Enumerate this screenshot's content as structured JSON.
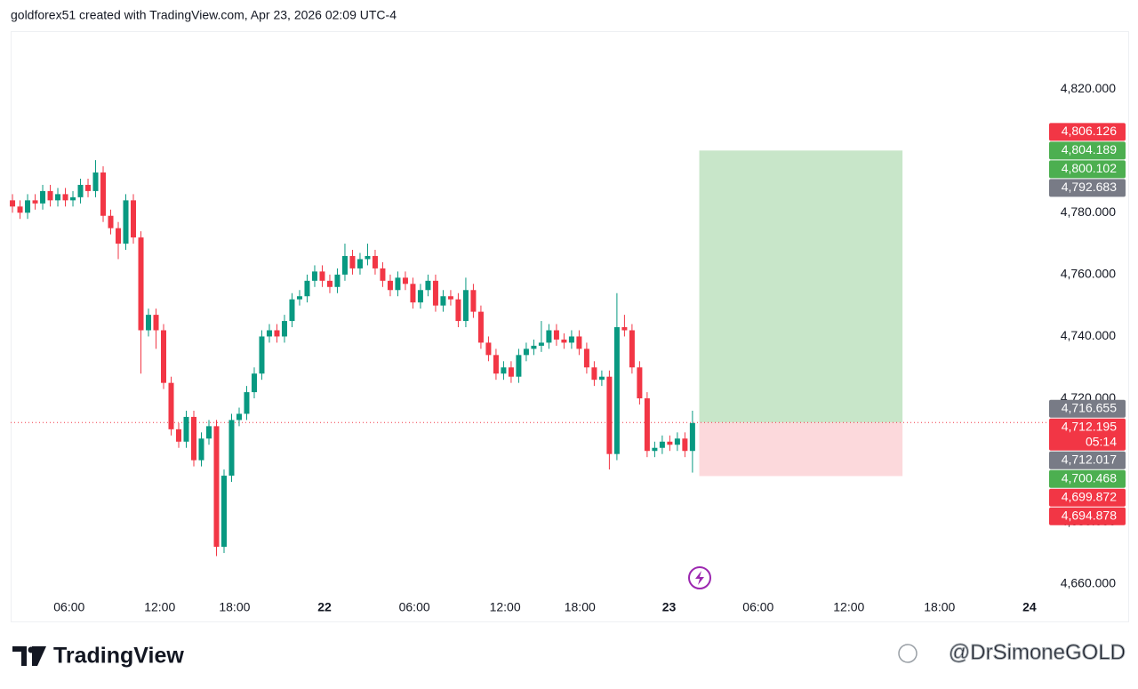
{
  "header": {
    "text": "goldforex51 created with TradingView.com, Apr 23, 2026 02:09 UTC-4"
  },
  "footer": {
    "brand": "TradingView",
    "watermark": "@DrSimoneGOLD"
  },
  "chart_data": {
    "type": "candlestick",
    "up_color": "#089981",
    "down_color": "#f23645",
    "open": [
      4784,
      4782,
      4780,
      4784,
      4783,
      4787,
      4784,
      4786,
      4784,
      4785,
      4789,
      4787,
      4793,
      4779,
      4775,
      4770,
      4784,
      4772,
      4742,
      4747,
      4742,
      4725,
      4710,
      4706,
      4714,
      4700,
      4707,
      4711,
      4672,
      4695,
      4713,
      4715,
      4722,
      4728,
      4740,
      4742,
      4740,
      4745,
      4752,
      4753,
      4758,
      4761,
      4758,
      4756,
      4760,
      4766,
      4762,
      4765,
      4766,
      4762,
      4758,
      4755,
      4759,
      4757,
      4751,
      4755,
      4758,
      4750,
      4753,
      4752,
      4745,
      4755,
      4748,
      4738,
      4734,
      4728,
      4730,
      4727,
      4734,
      4736,
      4737,
      4738,
      4742,
      4739,
      4738,
      4740,
      4736,
      4730,
      4726,
      4727,
      4702,
      4743,
      4742,
      4730,
      4720,
      4703,
      4704,
      4706,
      4705,
      4707,
      4703
    ],
    "high": [
      4786,
      4784,
      4786,
      4786,
      4789,
      4789,
      4788,
      4788,
      4787,
      4791,
      4791,
      4797,
      4795,
      4781,
      4777,
      4786,
      4786,
      4774,
      4749,
      4749,
      4744,
      4727,
      4712,
      4716,
      4716,
      4709,
      4713,
      4713,
      4697,
      4715,
      4717,
      4724,
      4730,
      4742,
      4744,
      4744,
      4747,
      4754,
      4755,
      4760,
      4763,
      4763,
      4760,
      4762,
      4770,
      4768,
      4767,
      4770,
      4768,
      4764,
      4760,
      4761,
      4761,
      4759,
      4757,
      4760,
      4760,
      4755,
      4755,
      4754,
      4759,
      4757,
      4750,
      4740,
      4736,
      4732,
      4732,
      4736,
      4738,
      4739,
      4745,
      4744,
      4744,
      4741,
      4742,
      4742,
      4738,
      4732,
      4729,
      4729,
      4754,
      4747,
      4744,
      4732,
      4722,
      4706,
      4708,
      4708,
      4709,
      4709,
      4716
    ],
    "low": [
      4780,
      4778,
      4778,
      4781,
      4781,
      4782,
      4782,
      4782,
      4782,
      4783,
      4785,
      4785,
      4777,
      4773,
      4765,
      4768,
      4770,
      4728,
      4740,
      4736,
      4723,
      4708,
      4704,
      4704,
      4698,
      4698,
      4705,
      4669,
      4670,
      4693,
      4711,
      4713,
      4720,
      4726,
      4738,
      4738,
      4738,
      4743,
      4750,
      4751,
      4756,
      4756,
      4754,
      4754,
      4758,
      4760,
      4760,
      4763,
      4760,
      4756,
      4753,
      4753,
      4755,
      4749,
      4749,
      4753,
      4748,
      4748,
      4750,
      4743,
      4743,
      4746,
      4736,
      4732,
      4726,
      4726,
      4725,
      4725,
      4732,
      4734,
      4735,
      4736,
      4737,
      4736,
      4736,
      4734,
      4728,
      4724,
      4724,
      4697,
      4700,
      4740,
      4728,
      4718,
      4701,
      4701,
      4702,
      4703,
      4703,
      4701,
      4696
    ],
    "close": [
      4782,
      4780,
      4784,
      4783,
      4787,
      4784,
      4786,
      4784,
      4785,
      4789,
      4787,
      4793,
      4779,
      4775,
      4770,
      4784,
      4772,
      4742,
      4747,
      4742,
      4725,
      4710,
      4706,
      4714,
      4700,
      4707,
      4711,
      4672,
      4695,
      4713,
      4715,
      4722,
      4728,
      4740,
      4742,
      4740,
      4745,
      4752,
      4753,
      4758,
      4761,
      4758,
      4756,
      4760,
      4766,
      4762,
      4765,
      4766,
      4762,
      4758,
      4755,
      4759,
      4757,
      4751,
      4755,
      4758,
      4750,
      4753,
      4752,
      4745,
      4755,
      4748,
      4738,
      4734,
      4728,
      4730,
      4727,
      4734,
      4736,
      4737,
      4738,
      4742,
      4739,
      4738,
      4740,
      4736,
      4730,
      4726,
      4727,
      4702,
      4743,
      4742,
      4730,
      4720,
      4703,
      4704,
      4706,
      4705,
      4707,
      4703,
      4712
    ],
    "xlim": [
      -0.24,
      137.2
    ],
    "xticks": [
      {
        "value": 7.5,
        "label": "06:00"
      },
      {
        "value": 19.5,
        "label": "12:00"
      },
      {
        "value": 29.4,
        "label": "18:00"
      },
      {
        "value": 41.3,
        "label": "22"
      },
      {
        "value": 53.2,
        "label": "06:00"
      },
      {
        "value": 65.2,
        "label": "12:00"
      },
      {
        "value": 75.1,
        "label": "18:00"
      },
      {
        "value": 86.9,
        "label": "23"
      },
      {
        "value": 98.7,
        "label": "06:00"
      },
      {
        "value": 110.7,
        "label": "12:00"
      },
      {
        "value": 122.7,
        "label": "18:00"
      },
      {
        "value": 134.6,
        "label": "24"
      }
    ],
    "ylim": [
      4647.6,
      4838.7
    ],
    "yticks": [
      {
        "value": 4660,
        "label": "4,660.000"
      },
      {
        "value": 4680,
        "label": "4,680.000"
      },
      {
        "value": 4700,
        "label": "4,700.000"
      },
      {
        "value": 4720,
        "label": "4,720.000"
      },
      {
        "value": 4740,
        "label": "4,740.000"
      },
      {
        "value": 4760,
        "label": "4,760.000"
      },
      {
        "value": 4780,
        "label": "4,780.000"
      },
      {
        "value": 4800,
        "label": "4,800.000"
      },
      {
        "value": 4820,
        "label": "4,820.000"
      }
    ],
    "position": {
      "start": 90.9,
      "end": 117.8,
      "entry": 4712.195,
      "target": 4800.102,
      "stop": 4694.878,
      "profit_color": "#c8e6c9",
      "loss_color": "#fcd9dc"
    },
    "last_price_line": 4712.195,
    "price_labels": [
      {
        "value": 4806.126,
        "label": "4,806.126",
        "color": "#f23645"
      },
      {
        "value": 4804.189,
        "label": "4,804.189",
        "color": "#4caf50"
      },
      {
        "value": 4800.102,
        "label": "4,800.102",
        "color": "#4caf50"
      },
      {
        "value": 4792.683,
        "label": "4,792.683",
        "color": "#787b86"
      },
      {
        "value": 4716.655,
        "label": "4,716.655",
        "color": "#787b86"
      },
      {
        "value": 4712.195,
        "label": "4,712.195",
        "color": "#f23645",
        "countdown": "05:14"
      },
      {
        "value": 4712.017,
        "label": "4,712.017",
        "color": "#787b86"
      },
      {
        "value": 4700.468,
        "label": "4,700.468",
        "color": "#4caf50"
      },
      {
        "value": 4699.872,
        "label": "4,699.872",
        "color": "#f23645"
      },
      {
        "value": 4694.878,
        "label": "4,694.878",
        "color": "#f23645"
      }
    ]
  }
}
